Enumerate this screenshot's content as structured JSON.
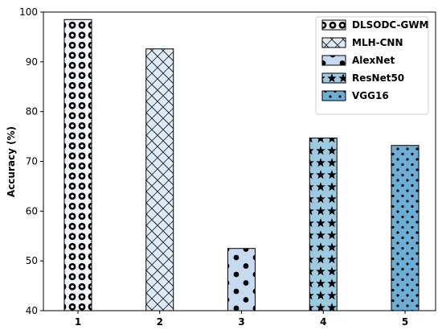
{
  "chart_data": {
    "type": "bar",
    "categories": [
      "1",
      "2",
      "3",
      "4",
      "5"
    ],
    "values": [
      98.5,
      92.6,
      52.5,
      74.7,
      73.2
    ],
    "xlabel": "",
    "ylabel": "Accuracy (%)",
    "ylim": [
      40,
      100
    ],
    "yticks": [
      40,
      50,
      60,
      70,
      80,
      90,
      100
    ],
    "grid": false,
    "legend_position": "top-right",
    "series": [
      {
        "name": "DLSODC-GWM",
        "color": "#f1f5fa",
        "hatch": "rings"
      },
      {
        "name": "MLH-CNN",
        "color": "#deebf7",
        "hatch": "crosshatch"
      },
      {
        "name": "AlexNet",
        "color": "#c6dbef",
        "hatch": "dots-large"
      },
      {
        "name": "ResNet50",
        "color": "#9ecae1",
        "hatch": "stars"
      },
      {
        "name": "VGG16",
        "color": "#6baed6",
        "hatch": "dots-small"
      }
    ]
  }
}
